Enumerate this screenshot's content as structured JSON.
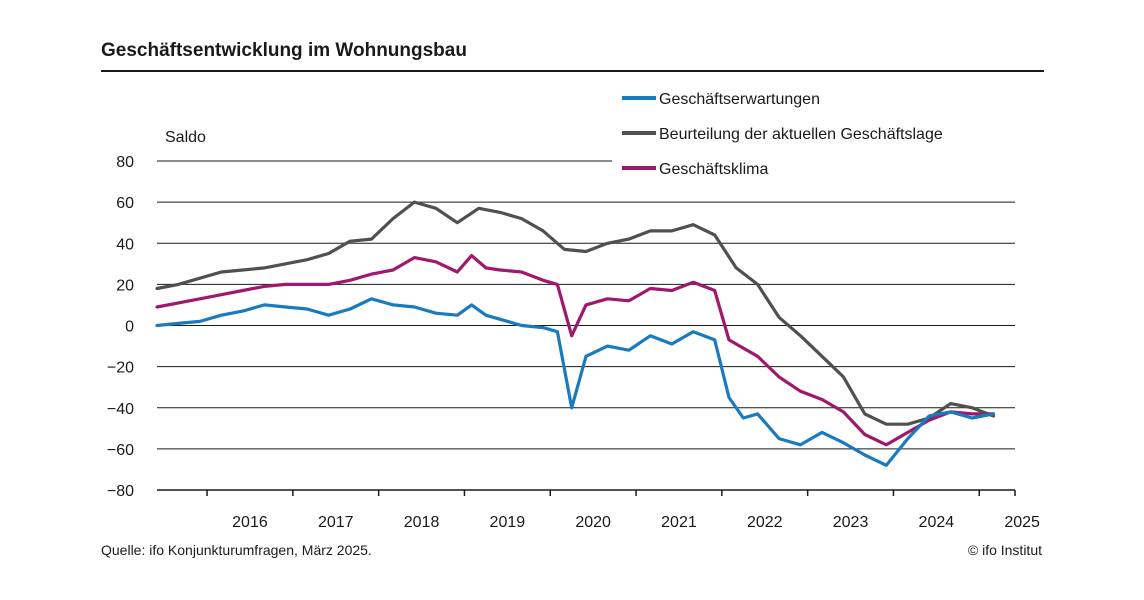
{
  "header": {
    "title": "Geschäftsentwicklung  im Wohnungsbau"
  },
  "footer": {
    "source": "Quelle: ifo Konjunkturumfragen, März 2025.",
    "copyright": "© ifo Institut"
  },
  "chart_data": {
    "type": "line",
    "title": "Geschäftsentwicklung  im Wohnungsbau",
    "ylabel": "Saldo",
    "xlabel": "",
    "ylim": [
      -80,
      80
    ],
    "yticks": [
      80,
      60,
      40,
      20,
      0,
      -20,
      -40,
      -60,
      -80
    ],
    "ytick_labels": [
      "80",
      "60",
      "40",
      "20",
      "0",
      "−20",
      "−40",
      "−60",
      "−80"
    ],
    "xlim": [
      "2015-06",
      "2025-06"
    ],
    "xtick_labels": [
      "2016",
      "2017",
      "2018",
      "2019",
      "2020",
      "2021",
      "2022",
      "2023",
      "2024",
      "2025"
    ],
    "grid": "horizontal",
    "legend_position": "top-right",
    "series": [
      {
        "name": "Geschäftserwartungen",
        "color": "#1a7ac0",
        "points": [
          [
            "2015-06",
            0
          ],
          [
            "2015-09",
            1
          ],
          [
            "2015-12",
            2
          ],
          [
            "2016-03",
            5
          ],
          [
            "2016-06",
            7
          ],
          [
            "2016-09",
            10
          ],
          [
            "2016-12",
            9
          ],
          [
            "2017-03",
            8
          ],
          [
            "2017-06",
            5
          ],
          [
            "2017-09",
            8
          ],
          [
            "2017-12",
            13
          ],
          [
            "2018-03",
            10
          ],
          [
            "2018-06",
            9
          ],
          [
            "2018-09",
            6
          ],
          [
            "2018-12",
            5
          ],
          [
            "2019-02",
            10
          ],
          [
            "2019-04",
            5
          ],
          [
            "2019-06",
            3
          ],
          [
            "2019-09",
            0
          ],
          [
            "2019-12",
            -1
          ],
          [
            "2020-02",
            -3
          ],
          [
            "2020-04",
            -40
          ],
          [
            "2020-06",
            -15
          ],
          [
            "2020-09",
            -10
          ],
          [
            "2020-12",
            -12
          ],
          [
            "2021-03",
            -5
          ],
          [
            "2021-06",
            -9
          ],
          [
            "2021-09",
            -3
          ],
          [
            "2021-12",
            -7
          ],
          [
            "2022-02",
            -35
          ],
          [
            "2022-04",
            -45
          ],
          [
            "2022-06",
            -43
          ],
          [
            "2022-09",
            -55
          ],
          [
            "2022-12",
            -58
          ],
          [
            "2023-03",
            -52
          ],
          [
            "2023-06",
            -57
          ],
          [
            "2023-09",
            -63
          ],
          [
            "2023-12",
            -68
          ],
          [
            "2024-03",
            -55
          ],
          [
            "2024-06",
            -44
          ],
          [
            "2024-09",
            -42
          ],
          [
            "2024-12",
            -45
          ],
          [
            "2025-03",
            -43
          ]
        ]
      },
      {
        "name": "Beurteilung der aktuellen Geschäftslage",
        "color": "#505050",
        "points": [
          [
            "2015-06",
            18
          ],
          [
            "2015-09",
            20
          ],
          [
            "2015-12",
            23
          ],
          [
            "2016-03",
            26
          ],
          [
            "2016-06",
            27
          ],
          [
            "2016-09",
            28
          ],
          [
            "2016-12",
            30
          ],
          [
            "2017-03",
            32
          ],
          [
            "2017-06",
            35
          ],
          [
            "2017-09",
            41
          ],
          [
            "2017-12",
            42
          ],
          [
            "2018-03",
            52
          ],
          [
            "2018-06",
            60
          ],
          [
            "2018-09",
            57
          ],
          [
            "2018-12",
            50
          ],
          [
            "2019-03",
            57
          ],
          [
            "2019-06",
            55
          ],
          [
            "2019-09",
            52
          ],
          [
            "2019-12",
            46
          ],
          [
            "2020-03",
            37
          ],
          [
            "2020-06",
            36
          ],
          [
            "2020-09",
            40
          ],
          [
            "2020-12",
            42
          ],
          [
            "2021-03",
            46
          ],
          [
            "2021-06",
            46
          ],
          [
            "2021-09",
            49
          ],
          [
            "2021-12",
            44
          ],
          [
            "2022-03",
            28
          ],
          [
            "2022-06",
            20
          ],
          [
            "2022-09",
            4
          ],
          [
            "2022-12",
            -5
          ],
          [
            "2023-03",
            -15
          ],
          [
            "2023-06",
            -25
          ],
          [
            "2023-09",
            -43
          ],
          [
            "2023-12",
            -48
          ],
          [
            "2024-03",
            -48
          ],
          [
            "2024-06",
            -45
          ],
          [
            "2024-09",
            -38
          ],
          [
            "2024-12",
            -40
          ],
          [
            "2025-03",
            -44
          ]
        ]
      },
      {
        "name": "Geschäftsklima",
        "color": "#a0186e",
        "points": [
          [
            "2015-06",
            9
          ],
          [
            "2015-09",
            11
          ],
          [
            "2015-12",
            13
          ],
          [
            "2016-03",
            15
          ],
          [
            "2016-06",
            17
          ],
          [
            "2016-09",
            19
          ],
          [
            "2016-12",
            20
          ],
          [
            "2017-03",
            20
          ],
          [
            "2017-06",
            20
          ],
          [
            "2017-09",
            22
          ],
          [
            "2017-12",
            25
          ],
          [
            "2018-03",
            27
          ],
          [
            "2018-06",
            33
          ],
          [
            "2018-09",
            31
          ],
          [
            "2018-12",
            26
          ],
          [
            "2019-02",
            34
          ],
          [
            "2019-04",
            28
          ],
          [
            "2019-06",
            27
          ],
          [
            "2019-09",
            26
          ],
          [
            "2019-12",
            22
          ],
          [
            "2020-02",
            20
          ],
          [
            "2020-04",
            -5
          ],
          [
            "2020-06",
            10
          ],
          [
            "2020-09",
            13
          ],
          [
            "2020-12",
            12
          ],
          [
            "2021-03",
            18
          ],
          [
            "2021-06",
            17
          ],
          [
            "2021-09",
            21
          ],
          [
            "2021-12",
            17
          ],
          [
            "2022-02",
            -7
          ],
          [
            "2022-04",
            -11
          ],
          [
            "2022-06",
            -15
          ],
          [
            "2022-09",
            -25
          ],
          [
            "2022-12",
            -32
          ],
          [
            "2023-03",
            -36
          ],
          [
            "2023-06",
            -42
          ],
          [
            "2023-09",
            -53
          ],
          [
            "2023-12",
            -58
          ],
          [
            "2024-03",
            -52
          ],
          [
            "2024-06",
            -46
          ],
          [
            "2024-09",
            -42
          ],
          [
            "2024-12",
            -43
          ],
          [
            "2025-03",
            -43
          ]
        ]
      }
    ]
  }
}
